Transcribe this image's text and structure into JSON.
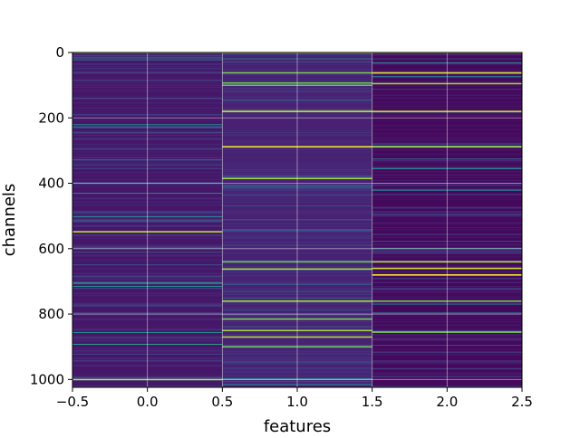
{
  "chart_data": {
    "type": "heatmap",
    "xlabel": "features",
    "ylabel": "channels",
    "xlim": [
      -0.5,
      2.5
    ],
    "ylim": [
      1024,
      0
    ],
    "x_ticks": [
      "−0.5",
      "0.0",
      "0.5",
      "1.0",
      "1.5",
      "2.0",
      "2.5"
    ],
    "y_ticks": [
      "0",
      "200",
      "400",
      "600",
      "800",
      "1000"
    ],
    "grid": true,
    "colormap": "viridis",
    "columns": [
      {
        "feature": 0,
        "base_level": 0.08,
        "bright_rows": [
          0,
          548,
          1000
        ]
      },
      {
        "feature": 1,
        "base_level": 0.12,
        "bright_rows": [
          0,
          62,
          93,
          100,
          180,
          288,
          385,
          640,
          662,
          760,
          815,
          850,
          870,
          900
        ]
      },
      {
        "feature": 2,
        "base_level": 0.03,
        "bright_rows": [
          0,
          62,
          95,
          180,
          288,
          640,
          660,
          680,
          760,
          855
        ]
      }
    ]
  }
}
